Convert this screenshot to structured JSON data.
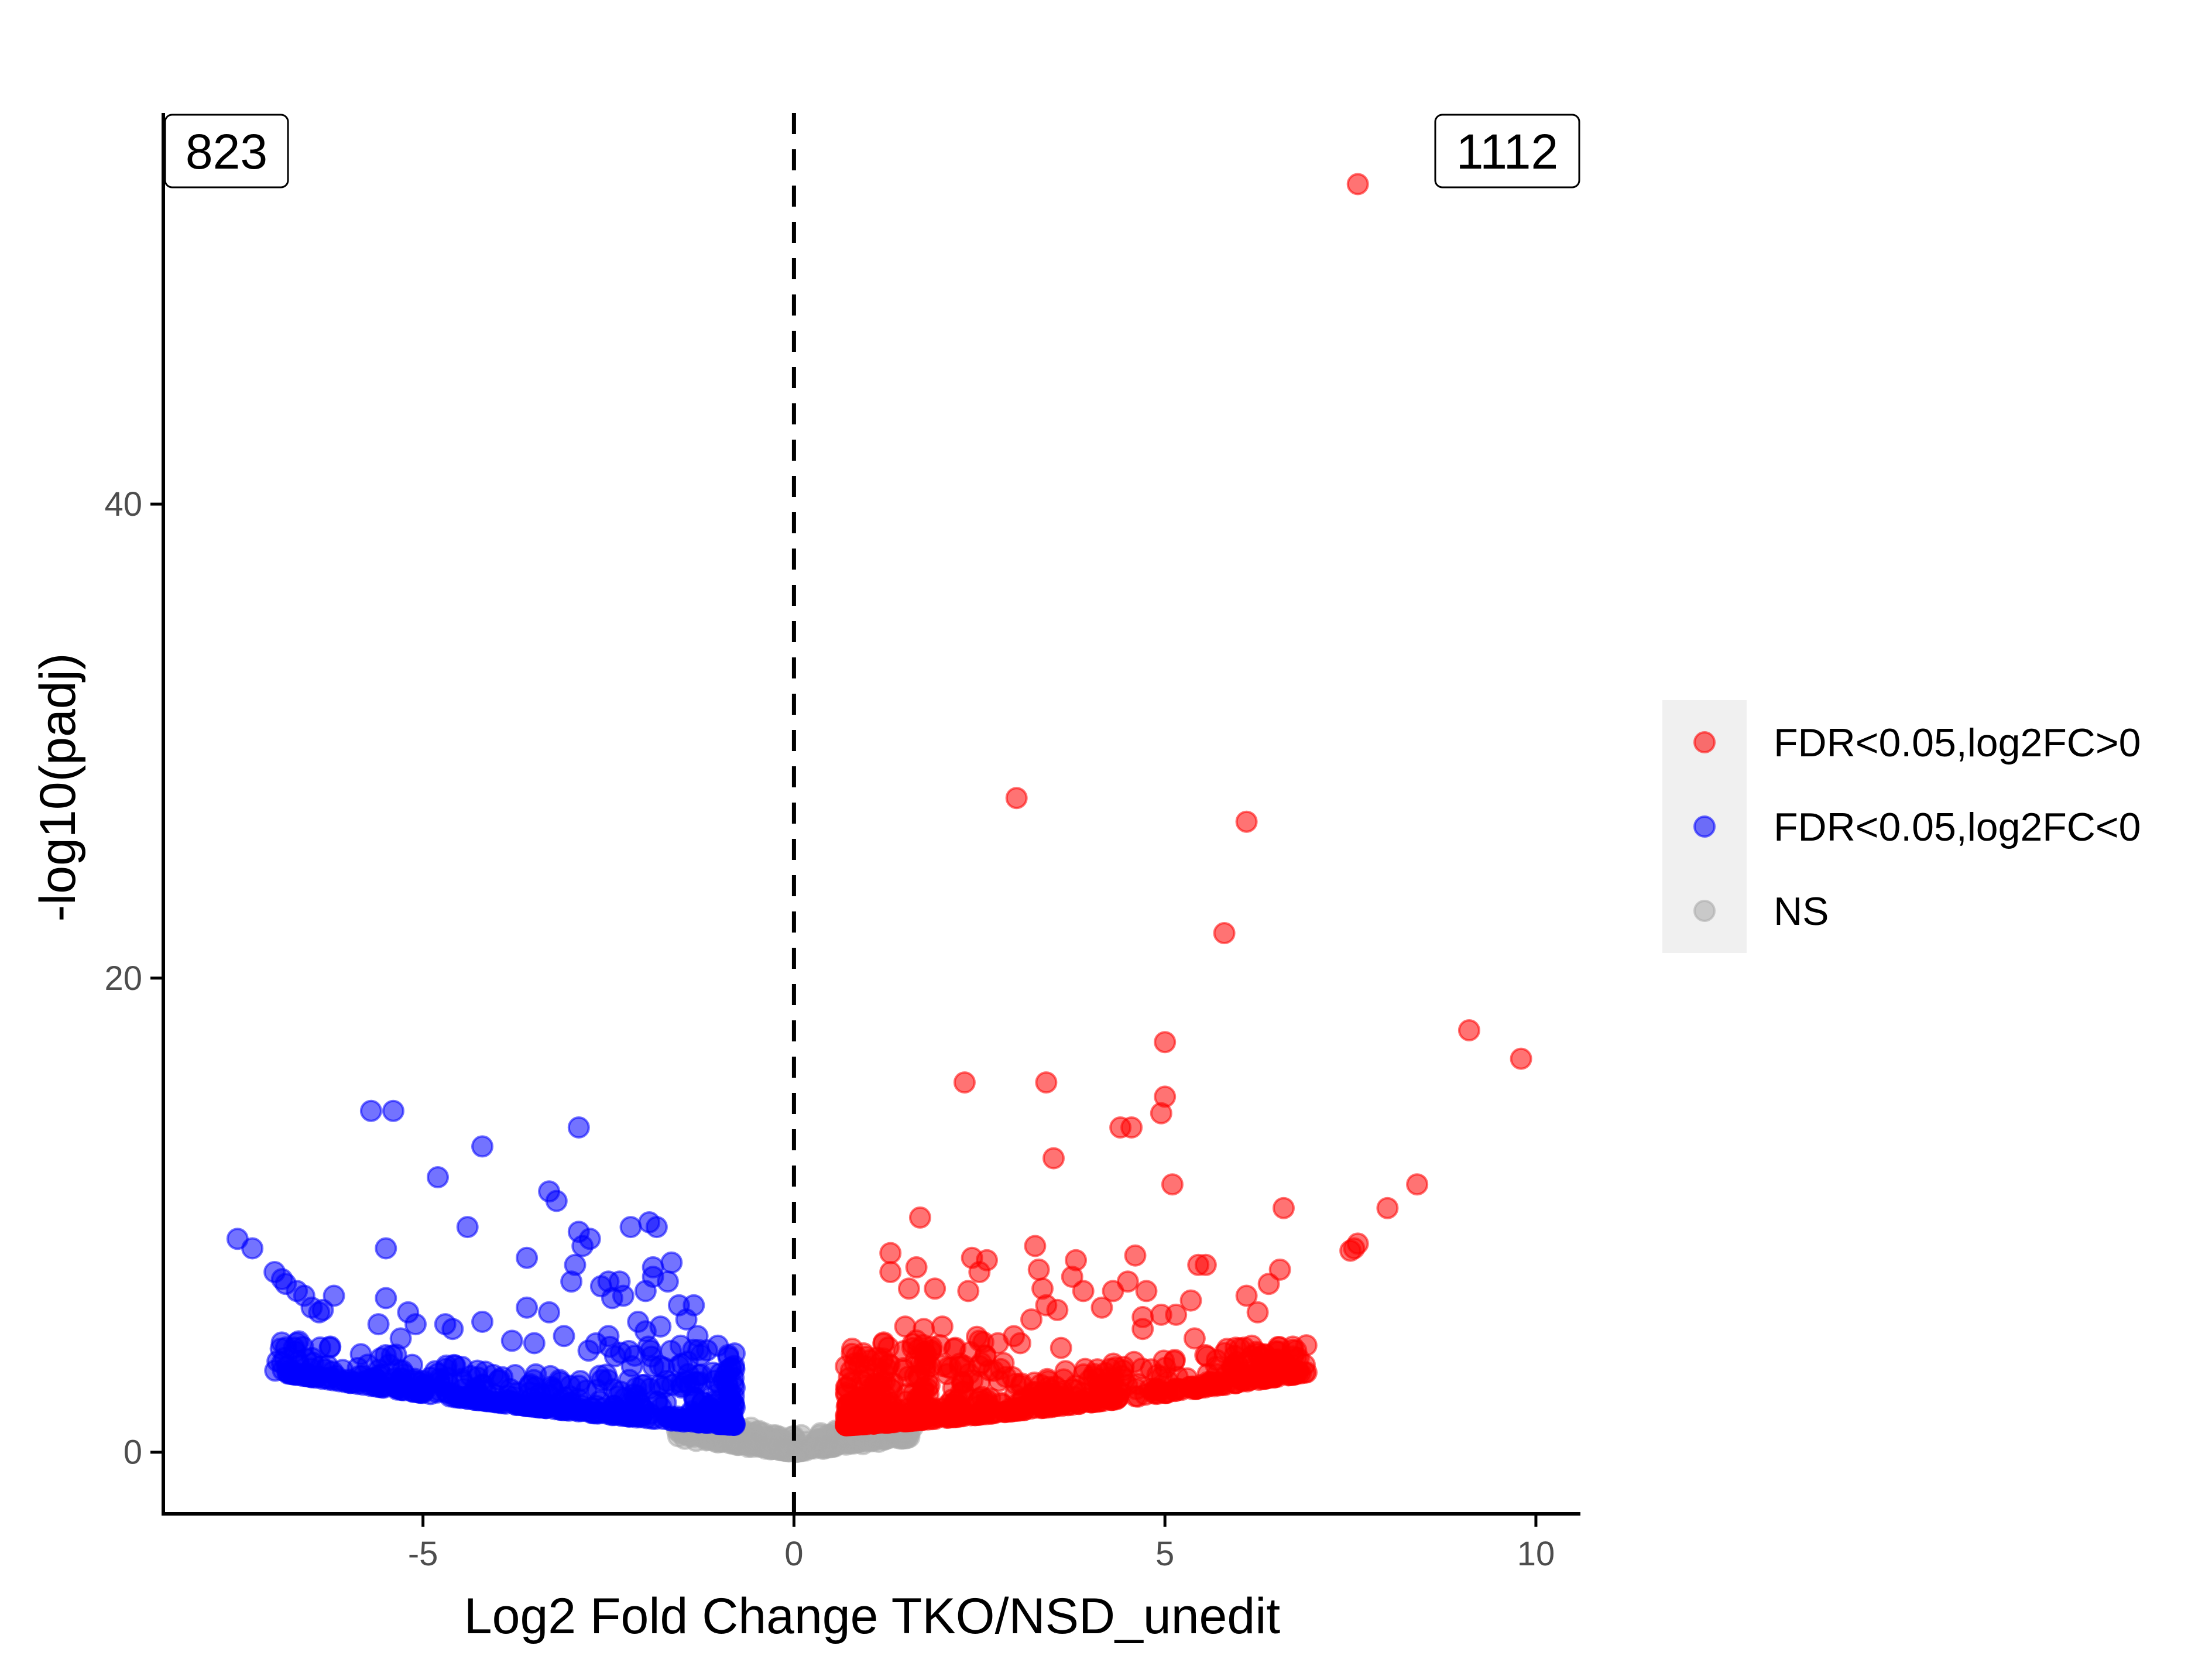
{
  "chart_data": {
    "type": "scatter",
    "title": "",
    "xlabel": "Log2 Fold Change TKO/NSD_unedit",
    "ylabel": "-log10(padj)",
    "xlim": [
      -8.5,
      10.6
    ],
    "ylim": [
      -2.6,
      56.5
    ],
    "x_ticks": [
      {
        "value": -5,
        "label": "-5"
      },
      {
        "value": 0,
        "label": "0"
      },
      {
        "value": 5,
        "label": "5"
      },
      {
        "value": 10,
        "label": "10"
      }
    ],
    "y_ticks": [
      {
        "value": 0,
        "label": "0"
      },
      {
        "value": 20,
        "label": "20"
      },
      {
        "value": 40,
        "label": "40"
      }
    ],
    "vertical_reference_line": {
      "x": 0,
      "style": "dashed"
    },
    "counts": {
      "down": "823",
      "up": "1112"
    },
    "legend": {
      "placement": "right",
      "background": "#f0f0f0"
    },
    "grid": false,
    "point_alpha": 0.55,
    "series": [
      {
        "name": "FDR<0.05,log2FC>0",
        "color": "#ff0000",
        "outliers": [
          [
            7.6,
            53.5
          ],
          [
            3.0,
            27.6
          ],
          [
            6.1,
            26.6
          ],
          [
            5.8,
            21.9
          ],
          [
            9.1,
            17.8
          ],
          [
            9.8,
            16.6
          ],
          [
            2.3,
            15.6
          ],
          [
            3.4,
            15.6
          ],
          [
            5.0,
            17.3
          ],
          [
            5.0,
            15.0
          ],
          [
            4.95,
            14.3
          ],
          [
            4.4,
            13.7
          ],
          [
            4.55,
            13.7
          ],
          [
            3.5,
            12.4
          ],
          [
            5.1,
            11.3
          ],
          [
            8.4,
            11.3
          ],
          [
            8.0,
            10.3
          ],
          [
            6.6,
            10.3
          ],
          [
            1.7,
            9.9
          ],
          [
            7.6,
            8.8
          ],
          [
            7.55,
            8.6
          ],
          [
            7.5,
            8.5
          ],
          [
            1.3,
            8.4
          ],
          [
            3.25,
            8.7
          ],
          [
            2.4,
            8.2
          ],
          [
            2.6,
            8.1
          ],
          [
            3.8,
            8.1
          ],
          [
            4.6,
            8.3
          ],
          [
            1.65,
            7.8
          ],
          [
            3.3,
            7.7
          ],
          [
            5.45,
            7.9
          ],
          [
            5.55,
            7.9
          ],
          [
            6.55,
            7.7
          ],
          [
            1.3,
            7.6
          ],
          [
            2.5,
            7.6
          ],
          [
            3.75,
            7.4
          ],
          [
            4.5,
            7.2
          ],
          [
            6.4,
            7.1
          ],
          [
            1.55,
            6.9
          ],
          [
            1.9,
            6.9
          ],
          [
            2.35,
            6.8
          ],
          [
            3.35,
            6.9
          ],
          [
            3.9,
            6.8
          ],
          [
            4.3,
            6.8
          ],
          [
            4.75,
            6.8
          ],
          [
            6.1,
            6.6
          ],
          [
            3.4,
            6.2
          ],
          [
            3.55,
            6.0
          ],
          [
            5.35,
            6.4
          ],
          [
            4.15,
            6.1
          ],
          [
            4.7,
            5.7
          ],
          [
            4.95,
            5.8
          ],
          [
            5.15,
            5.8
          ],
          [
            6.25,
            5.9
          ],
          [
            3.2,
            5.6
          ],
          [
            4.7,
            5.2
          ],
          [
            1.5,
            5.3
          ],
          [
            1.75,
            5.2
          ],
          [
            2.0,
            5.3
          ],
          [
            5.4,
            4.8
          ],
          [
            6.3,
            4.0
          ],
          [
            6.35,
            4.1
          ],
          [
            2.5,
            4.7
          ],
          [
            2.75,
            4.6
          ],
          [
            3.05,
            4.6
          ],
          [
            3.6,
            4.4
          ]
        ],
        "cloud": {
          "count": 650,
          "x_range": [
            0.7,
            6.95
          ],
          "y_floor": "0.14*x^1.45",
          "y_spread": 3.4
        }
      },
      {
        "name": "FDR<0.05,log2FC<0",
        "color": "#0000ff",
        "outliers": [
          [
            -5.7,
            14.4
          ],
          [
            -5.4,
            14.4
          ],
          [
            -2.9,
            13.7
          ],
          [
            -4.2,
            12.9
          ],
          [
            -4.8,
            11.6
          ],
          [
            -3.3,
            11.0
          ],
          [
            -3.2,
            10.6
          ],
          [
            -1.95,
            9.7
          ],
          [
            -2.2,
            9.5
          ],
          [
            -1.85,
            9.5
          ],
          [
            -4.4,
            9.5
          ],
          [
            -2.9,
            9.3
          ],
          [
            -2.75,
            9.0
          ],
          [
            -2.85,
            8.7
          ],
          [
            -7.5,
            9.0
          ],
          [
            -7.3,
            8.6
          ],
          [
            -5.5,
            8.6
          ],
          [
            -3.6,
            8.2
          ],
          [
            -1.65,
            8.0
          ],
          [
            -2.95,
            7.9
          ],
          [
            -1.9,
            7.8
          ],
          [
            -1.9,
            7.4
          ],
          [
            -7.0,
            7.6
          ],
          [
            -6.9,
            7.3
          ],
          [
            -6.85,
            7.1
          ],
          [
            -1.7,
            7.2
          ],
          [
            -3.0,
            7.2
          ],
          [
            -2.35,
            7.2
          ],
          [
            -2.5,
            7.2
          ],
          [
            -2.6,
            7.0
          ],
          [
            -2.0,
            6.8
          ],
          [
            -6.7,
            6.8
          ],
          [
            -6.6,
            6.6
          ],
          [
            -5.5,
            6.5
          ],
          [
            -6.2,
            6.6
          ],
          [
            -2.3,
            6.6
          ],
          [
            -2.45,
            6.5
          ],
          [
            -1.55,
            6.2
          ],
          [
            -1.35,
            6.2
          ],
          [
            -3.6,
            6.1
          ],
          [
            -3.3,
            5.9
          ],
          [
            -5.2,
            5.9
          ],
          [
            -6.5,
            6.1
          ],
          [
            -6.4,
            5.9
          ],
          [
            -6.35,
            6.0
          ],
          [
            -4.7,
            5.4
          ],
          [
            -4.6,
            5.2
          ],
          [
            -4.2,
            5.5
          ],
          [
            -5.6,
            5.4
          ],
          [
            -5.1,
            5.4
          ],
          [
            -2.1,
            5.5
          ],
          [
            -2.0,
            5.1
          ],
          [
            -1.8,
            5.3
          ],
          [
            -1.45,
            5.6
          ],
          [
            -3.8,
            4.7
          ],
          [
            -3.5,
            4.6
          ],
          [
            -3.1,
            4.9
          ],
          [
            -5.3,
            4.8
          ],
          [
            -2.5,
            4.9
          ],
          [
            -1.3,
            4.9
          ]
        ],
        "cloud": {
          "count": 520,
          "x_range": [
            -7.0,
            -0.8
          ],
          "y_floor": "0.14*|x|^1.45",
          "y_spread": 3.3
        }
      },
      {
        "name": "NS",
        "color": "#a9a9a9",
        "outliers": [],
        "cloud": {
          "count": 320,
          "x_range": [
            -1.6,
            1.6
          ],
          "y_floor": "0.6*|x|",
          "y_spread": 0.7
        }
      }
    ]
  }
}
